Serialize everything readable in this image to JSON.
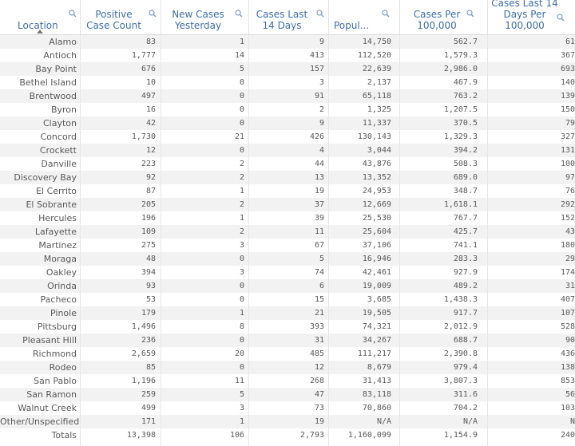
{
  "columns": [
    {
      "label": "Location"
    },
    {
      "label": "Positive Case Count"
    },
    {
      "label": "New Cases Yesterday"
    },
    {
      "label": "Cases Last 14 Days"
    },
    {
      "label": "Popul..."
    },
    {
      "label": "Cases Per 100,000"
    },
    {
      "label": "Cases Last 14 Days Per 100,000"
    }
  ],
  "rows": [
    [
      "Alamo",
      "83",
      "1",
      "9",
      "14,750",
      "562.7",
      "61"
    ],
    [
      "Antioch",
      "1,777",
      "14",
      "413",
      "112,520",
      "1,579.3",
      "367"
    ],
    [
      "Bay Point",
      "676",
      "5",
      "157",
      "22,639",
      "2,986.0",
      "693"
    ],
    [
      "Bethel Island",
      "10",
      "0",
      "3",
      "2,137",
      "467.9",
      "140"
    ],
    [
      "Brentwood",
      "497",
      "0",
      "91",
      "65,118",
      "763.2",
      "139"
    ],
    [
      "Byron",
      "16",
      "0",
      "2",
      "1,325",
      "1,207.5",
      "150"
    ],
    [
      "Clayton",
      "42",
      "0",
      "9",
      "11,337",
      "370.5",
      "79"
    ],
    [
      "Concord",
      "1,730",
      "21",
      "426",
      "130,143",
      "1,329.3",
      "327"
    ],
    [
      "Crockett",
      "12",
      "0",
      "4",
      "3,044",
      "394.2",
      "131"
    ],
    [
      "Danville",
      "223",
      "2",
      "44",
      "43,876",
      "508.3",
      "100"
    ],
    [
      "Discovery Bay",
      "92",
      "2",
      "13",
      "13,352",
      "689.0",
      "97"
    ],
    [
      "El Cerrito",
      "87",
      "1",
      "19",
      "24,953",
      "348.7",
      "76"
    ],
    [
      "El Sobrante",
      "205",
      "2",
      "37",
      "12,669",
      "1,618.1",
      "292"
    ],
    [
      "Hercules",
      "196",
      "1",
      "39",
      "25,530",
      "767.7",
      "152"
    ],
    [
      "Lafayette",
      "109",
      "2",
      "11",
      "25,604",
      "425.7",
      "43"
    ],
    [
      "Martinez",
      "275",
      "3",
      "67",
      "37,106",
      "741.1",
      "180"
    ],
    [
      "Moraga",
      "48",
      "0",
      "5",
      "16,946",
      "283.3",
      "29"
    ],
    [
      "Oakley",
      "394",
      "3",
      "74",
      "42,461",
      "927.9",
      "174"
    ],
    [
      "Orinda",
      "93",
      "0",
      "6",
      "19,009",
      "489.2",
      "31"
    ],
    [
      "Pacheco",
      "53",
      "0",
      "15",
      "3,685",
      "1,438.3",
      "407"
    ],
    [
      "Pinole",
      "179",
      "1",
      "21",
      "19,505",
      "917.7",
      "107"
    ],
    [
      "Pittsburg",
      "1,496",
      "8",
      "393",
      "74,321",
      "2,012.9",
      "528"
    ],
    [
      "Pleasant Hill",
      "236",
      "0",
      "31",
      "34,267",
      "688.7",
      "90"
    ],
    [
      "Richmond",
      "2,659",
      "20",
      "485",
      "111,217",
      "2,390.8",
      "436"
    ],
    [
      "Rodeo",
      "85",
      "0",
      "12",
      "8,679",
      "979.4",
      "138"
    ],
    [
      "San Pablo",
      "1,196",
      "11",
      "268",
      "31,413",
      "3,807.3",
      "853"
    ],
    [
      "San Ramon",
      "259",
      "5",
      "47",
      "83,118",
      "311.6",
      "56"
    ],
    [
      "Walnut Creek",
      "499",
      "3",
      "73",
      "70,860",
      "704.2",
      "103"
    ],
    [
      "Other/Unspecified",
      "171",
      "1",
      "19",
      "N/A",
      "N/A",
      "N"
    ],
    [
      "Totals",
      "13,398",
      "106",
      "2,793",
      "1,160,099",
      "1,154.9",
      "240"
    ]
  ],
  "colors": {
    "header_text": "#3d6fa8",
    "row_alt": "#f2f2f2",
    "text": "#595959"
  },
  "icons": {
    "search": "search-icon",
    "sort": "sort-ascending-icon"
  }
}
